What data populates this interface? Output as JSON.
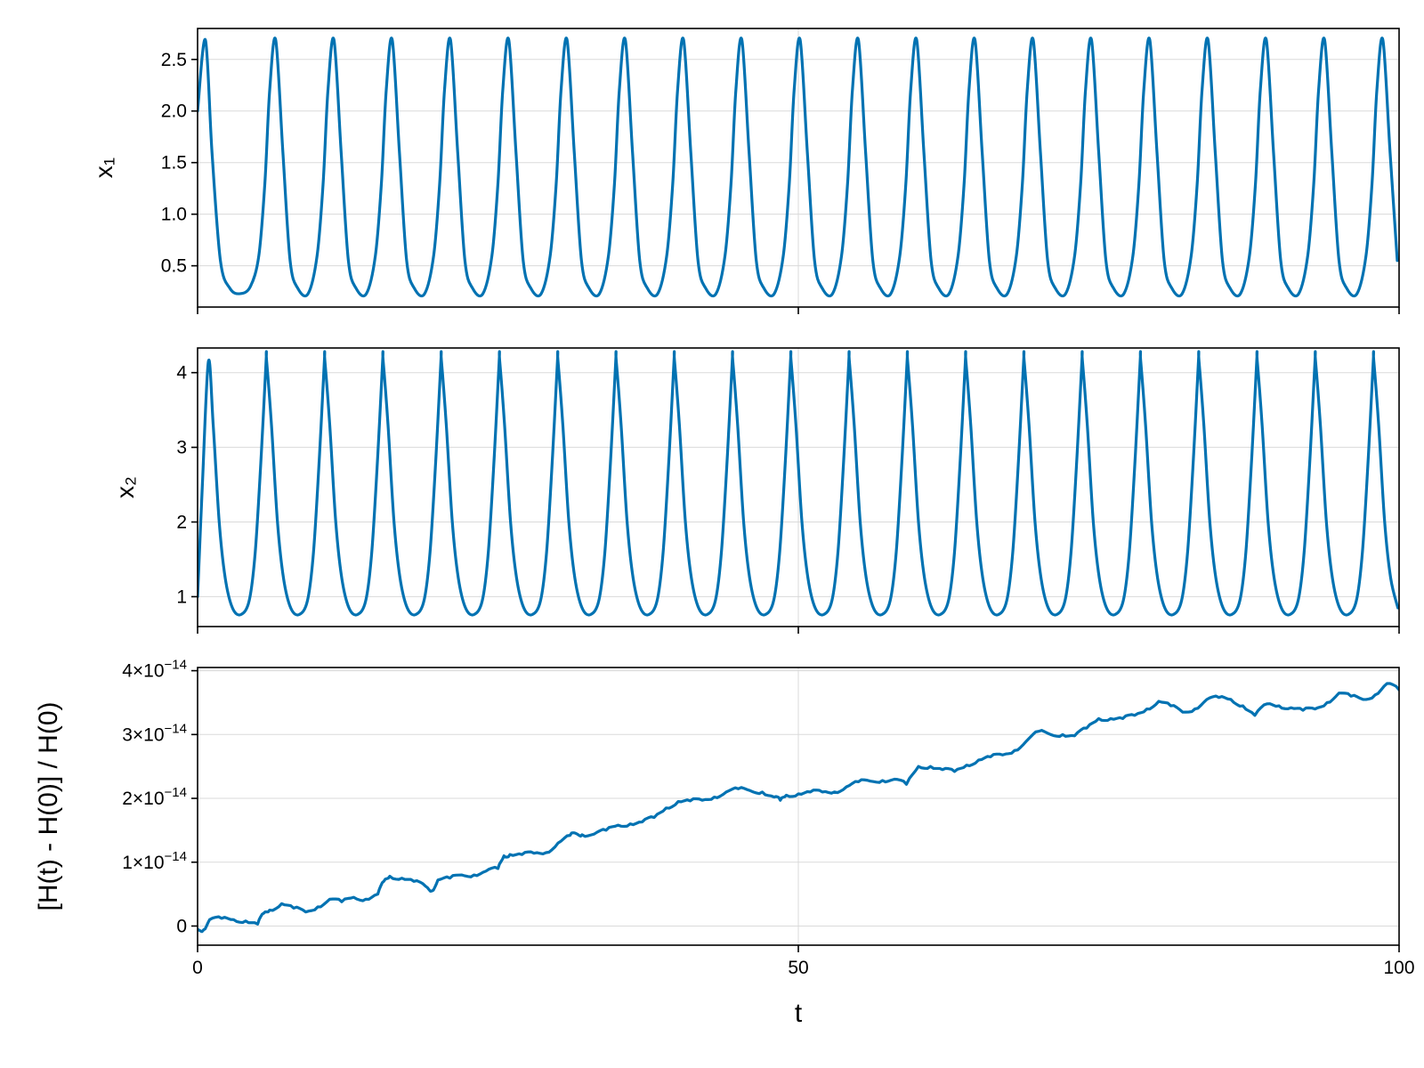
{
  "colors": {
    "series": "#0072b2",
    "grid": "#dadada",
    "frame": "#000000"
  },
  "chart_data": [
    {
      "type": "line",
      "panel": "top",
      "ylabel": "x₁",
      "xlim": [
        0,
        100
      ],
      "ylim": [
        0.1,
        2.8
      ],
      "yticks": [
        0.5,
        1.0,
        1.5,
        2.0,
        2.5
      ],
      "ytick_labels": [
        "0.5",
        "1.0",
        "1.5",
        "2.0",
        "2.5"
      ],
      "xticks": [
        0,
        50,
        100
      ],
      "grid": true,
      "series": [
        {
          "color": "#0072b2",
          "x": [
            0,
            0.65,
            1.2,
            1.9,
            2.7,
            3.55,
            4.4,
            5.1,
            5.6,
            6.0,
            6.5,
            7.1,
            7.7,
            8.35,
            9.2,
            10.0,
            10.7,
            11.2,
            11.5,
            12.0,
            12.6,
            13.3,
            14.0,
            14.8,
            15.6,
            16.3,
            16.8,
            17.05
          ],
          "y": [
            2.0,
            2.69,
            1.6,
            0.55,
            0.28,
            0.23,
            0.3,
            0.6,
            1.3,
            2.2,
            2.69,
            1.6,
            0.55,
            0.28,
            0.23,
            0.3,
            0.6,
            1.3,
            2.2,
            2.69,
            1.6,
            0.55,
            0.28,
            0.23,
            0.3,
            0.6,
            1.3,
            2.2
          ],
          "periodic": {
            "period": 4.85,
            "template_start": 4.85,
            "template_end": 9.7
          }
        }
      ]
    },
    {
      "type": "line",
      "panel": "middle",
      "ylabel": "x₂",
      "xlim": [
        0,
        100
      ],
      "ylim": [
        0.6,
        4.33
      ],
      "yticks": [
        1,
        2,
        3,
        4
      ],
      "ytick_labels": [
        "1",
        "2",
        "3",
        "4"
      ],
      "xticks": [
        0,
        50,
        100
      ],
      "grid": true,
      "series": [
        {
          "color": "#0072b2",
          "x": [
            0,
            0.4,
            0.9,
            1.3,
            1.8,
            2.3,
            2.9,
            3.6,
            4.3,
            4.8,
            5.3,
            5.7,
            6.2,
            6.7
          ],
          "y": [
            1.0,
            2.5,
            4.15,
            3.3,
            2.0,
            1.25,
            0.85,
            0.76,
            0.95,
            1.6,
            2.9,
            4.15,
            3.3,
            2.0
          ],
          "periodic": {
            "period": 4.85,
            "template_start": 0.9,
            "template_end": 5.75
          }
        }
      ]
    },
    {
      "type": "line",
      "panel": "bottom",
      "xlabel": "t",
      "ylabel": "[H(t) - H(0)] / H(0)",
      "xlim": [
        0,
        100
      ],
      "ylim": [
        -3e-15,
        4.05e-14
      ],
      "yticks": [
        0,
        1e-14,
        2e-14,
        3e-14,
        4e-14
      ],
      "ytick_labels": [
        {
          "mantissa": "0",
          "exponent": ""
        },
        {
          "mantissa": "1×10",
          "exponent": "−14"
        },
        {
          "mantissa": "2×10",
          "exponent": "−14"
        },
        {
          "mantissa": "3×10",
          "exponent": "−14"
        },
        {
          "mantissa": "4×10",
          "exponent": "−14"
        }
      ],
      "xticks": [
        0,
        50,
        100
      ],
      "xtick_labels": [
        "0",
        "50",
        "100"
      ],
      "grid": true,
      "series": [
        {
          "color": "#0072b2",
          "x": [
            0,
            0.5,
            1,
            2,
            3,
            4,
            5,
            5.5,
            6,
            7,
            8,
            9,
            10,
            11,
            12,
            13,
            14,
            15,
            15.5,
            16,
            17,
            18,
            19,
            19.5,
            20,
            21,
            22,
            23,
            24,
            25,
            25.5,
            26,
            27,
            28,
            29,
            30,
            31,
            31.5,
            32,
            33,
            34,
            35,
            36,
            37,
            38,
            39,
            40,
            41,
            42,
            43,
            44,
            45,
            46,
            47,
            48,
            48.5,
            49,
            50,
            51,
            52,
            53,
            54,
            55,
            56,
            57,
            58,
            59,
            60,
            61,
            62,
            63,
            64,
            65,
            66,
            67,
            68,
            69,
            70,
            71,
            72,
            73,
            74,
            75,
            76,
            77,
            78,
            79,
            80,
            81,
            82,
            83,
            84,
            85,
            86,
            87,
            88,
            89,
            90,
            91,
            92,
            93,
            94,
            95,
            96,
            97,
            98,
            99,
            100
          ],
          "y": [
            -0.05,
            -0.06,
            0.1,
            0.12,
            0.1,
            0.08,
            0.03,
            0.2,
            0.25,
            0.35,
            0.28,
            0.22,
            0.3,
            0.42,
            0.38,
            0.45,
            0.42,
            0.5,
            0.7,
            0.78,
            0.75,
            0.7,
            0.62,
            0.55,
            0.72,
            0.75,
            0.8,
            0.8,
            0.86,
            0.9,
            1.1,
            1.12,
            1.12,
            1.14,
            1.15,
            1.3,
            1.42,
            1.45,
            1.43,
            1.44,
            1.5,
            1.58,
            1.6,
            1.63,
            1.7,
            1.85,
            1.95,
            1.96,
            1.97,
            2.02,
            2.1,
            2.15,
            2.12,
            2.1,
            2.02,
            1.97,
            2.05,
            2.07,
            2.1,
            2.1,
            2.1,
            2.18,
            2.26,
            2.27,
            2.28,
            2.3,
            2.22,
            2.5,
            2.5,
            2.45,
            2.42,
            2.52,
            2.6,
            2.65,
            2.68,
            2.75,
            2.9,
            3.05,
            3.0,
            3.0,
            2.98,
            3.1,
            3.25,
            3.25,
            3.25,
            3.3,
            3.4,
            3.52,
            3.45,
            3.35,
            3.4,
            3.55,
            3.58,
            3.55,
            3.45,
            3.3,
            3.48,
            3.45,
            3.42,
            3.38,
            3.4,
            3.5,
            3.65,
            3.6,
            3.55,
            3.62,
            3.8,
            3.7
          ]
        }
      ]
    }
  ]
}
